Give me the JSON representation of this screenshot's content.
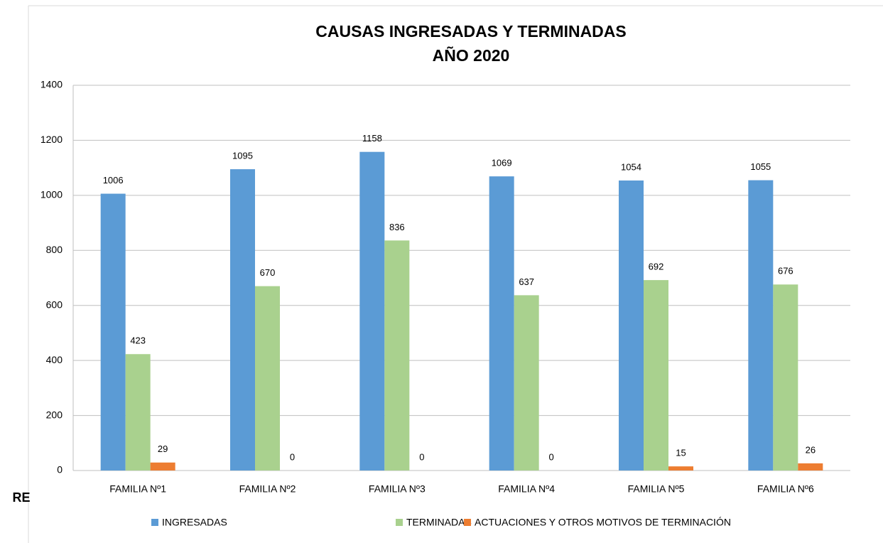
{
  "background_text": "RE",
  "chart_data": {
    "type": "bar",
    "title": "CAUSAS INGRESADAS Y TERMINADAS",
    "subtitle": "AÑO 2020",
    "categories": [
      "FAMILIA Nº1",
      "FAMILIA Nº2",
      "FAMILIA Nº3",
      "FAMILIA Nº4",
      "FAMILIA Nº5",
      "FAMILIA Nº6"
    ],
    "series": [
      {
        "name": "INGRESADAS",
        "color": "#5b9bd5",
        "values": [
          1006,
          1095,
          1158,
          1069,
          1054,
          1055
        ]
      },
      {
        "name": "TERMINADAS",
        "color": "#a9d18e",
        "values": [
          423,
          670,
          836,
          637,
          692,
          676
        ]
      },
      {
        "name": "ACTUACIONES Y OTROS MOTIVOS DE TERMINACIÓN",
        "color": "#ed7d31",
        "values": [
          29,
          0,
          0,
          0,
          15,
          26
        ]
      }
    ],
    "ylim": [
      0,
      1400
    ],
    "yticks": [
      0,
      200,
      400,
      600,
      800,
      1000,
      1200,
      1400
    ],
    "grid": true,
    "legend": "bottom"
  }
}
